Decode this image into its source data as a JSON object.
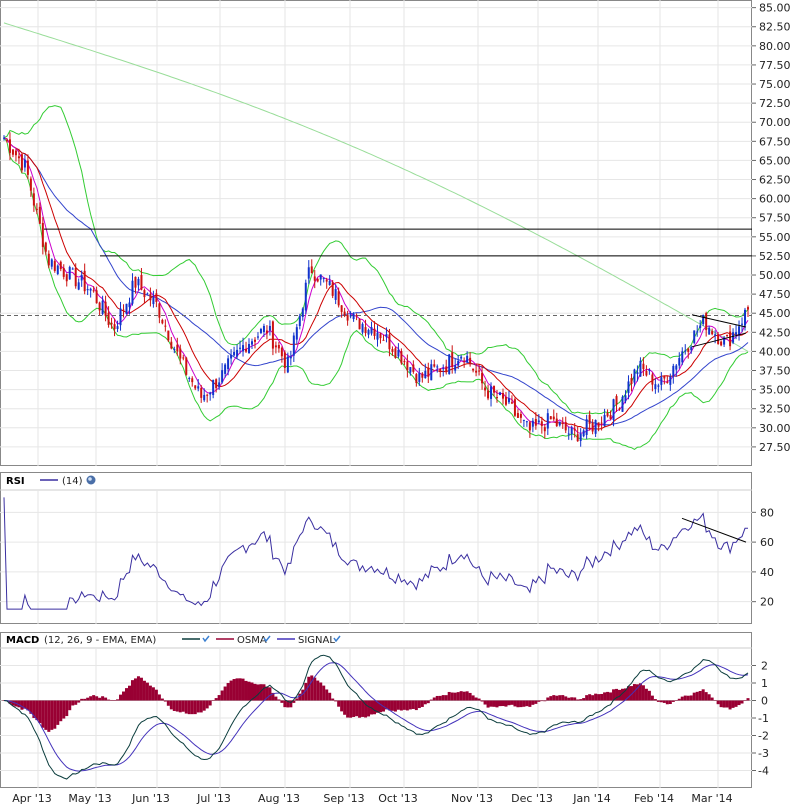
{
  "chart_data": [
    {
      "type": "candlestick",
      "panel": "price",
      "title": "",
      "ylim": [
        25,
        86
      ],
      "yticks": [
        "27.50",
        "30.00",
        "32.50",
        "35.00",
        "37.50",
        "40.00",
        "42.50",
        "45.00",
        "47.50",
        "50.00",
        "52.50",
        "55.00",
        "57.50",
        "60.00",
        "62.50",
        "65.00",
        "67.50",
        "70.00",
        "72.50",
        "75.00",
        "77.50",
        "80.00",
        "82.50",
        "85.00"
      ],
      "x_labels": [
        "Apr '13",
        "May '13",
        "Jun '13",
        "Jul '13",
        "Aug '13",
        "Sep '13",
        "Oct '13",
        "Nov '13",
        "Dec '13",
        "Jan '14",
        "Feb '14",
        "Mar '14"
      ],
      "close_key_points": [
        [
          "Apr '13",
          68.0
        ],
        [
          "mid Apr '13",
          64.0
        ],
        [
          "late Apr '13",
          52.0
        ],
        [
          "May '13",
          50.0
        ],
        [
          "mid May '13",
          48.0
        ],
        [
          "late May '13",
          43.0
        ],
        [
          "Jun '13",
          49.0
        ],
        [
          "mid Jun '13",
          46.0
        ],
        [
          "late Jun '13",
          39.0
        ],
        [
          "Jul '13",
          34.0
        ],
        [
          "mid Jul '13",
          37.0
        ],
        [
          "late Jul '13",
          41.0
        ],
        [
          "Aug '13",
          43.0
        ],
        [
          "mid Aug '13",
          38.0
        ],
        [
          "late Aug '13",
          51.0
        ],
        [
          "Sep '13",
          48.0
        ],
        [
          "mid Sep '13",
          44.0
        ],
        [
          "late Sep '13",
          43.0
        ],
        [
          "Oct '13",
          40.0
        ],
        [
          "mid Oct '13",
          36.5
        ],
        [
          "late Oct '13",
          38.0
        ],
        [
          "Nov '13",
          40.0
        ],
        [
          "mid Nov '13",
          35.0
        ],
        [
          "late Nov '13",
          33.0
        ],
        [
          "Dec '13",
          29.5
        ],
        [
          "mid Dec '13",
          31.0
        ],
        [
          "late Dec '13",
          29.0
        ],
        [
          "Jan '14",
          30.5
        ],
        [
          "mid Jan '14",
          33.0
        ],
        [
          "late Jan '14",
          38.0
        ],
        [
          "Feb '14",
          35.5
        ],
        [
          "mid Feb '14",
          40.0
        ],
        [
          "late Feb '14",
          44.0
        ],
        [
          "Mar '14",
          41.0
        ],
        [
          "late Mar '14",
          45.5
        ]
      ],
      "overlays": [
        {
          "kind": "sma-short",
          "color": "#cc00cc"
        },
        {
          "kind": "sma-medium",
          "color": "#cc0000"
        },
        {
          "kind": "sma-long",
          "color": "#3344cc"
        },
        {
          "kind": "sma-very-long",
          "color": "#99dd99"
        },
        {
          "kind": "bollinger-bands",
          "color": "#33cc33"
        }
      ],
      "horizontal_lines": [
        {
          "value": 56.0,
          "style": "solid",
          "color": "#000000"
        },
        {
          "value": 52.5,
          "style": "solid",
          "color": "#000000"
        },
        {
          "value": 44.7,
          "style": "dashed",
          "color": "#666666"
        }
      ],
      "up_color": "#1133cc",
      "down_color": "#cc1111"
    },
    {
      "type": "line",
      "panel": "rsi",
      "label": "RSI",
      "legend": "(14)",
      "ylim": [
        5,
        95
      ],
      "yticks": [
        "20",
        "40",
        "60",
        "80"
      ],
      "series": [
        {
          "name": "(14)",
          "color": "#3a2fa0"
        }
      ],
      "annotation": "trend line from peak near 75 to near 60"
    },
    {
      "type": "line+bar",
      "panel": "macd",
      "label": "MACD",
      "params": "(12, 26, 9 - EMA, EMA)",
      "ylim": [
        -5,
        3
      ],
      "yticks": [
        "-4",
        "-3",
        "-2",
        "-1",
        "0",
        "1",
        "2"
      ],
      "series": [
        {
          "name": "",
          "color": "#0b3d3d"
        },
        {
          "name": "OSMA",
          "color": "#990033"
        },
        {
          "name": "SIGNAL",
          "color": "#4433bb"
        }
      ]
    }
  ]
}
